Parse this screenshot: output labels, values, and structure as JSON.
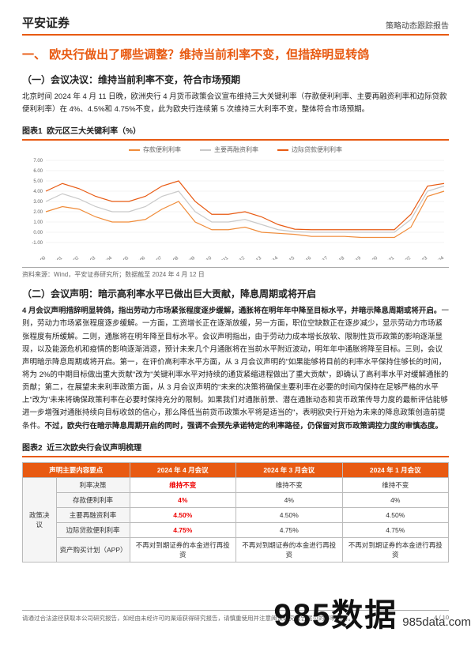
{
  "header": {
    "brand": "平安证券",
    "report_type": "策略动态跟踪报告"
  },
  "h1": "一、 欧央行做出了哪些调整？维持当前利率不变，但措辞明显转鸽",
  "section1": {
    "h2": "（一）会议决议：维持当前利率不变，符合市场预期",
    "p1": "北京时间 2024 年 4 月 11 日晚，欧洲央行 4 月货币政策会议宣布维持三大关键利率（存款便利利率、主要再融资利率和边际贷款便利利率）在 4%、4.5%和 4.75%不变，此为欧央行连续第 5 次维持三大利率不变，整体符合市场预期。"
  },
  "chart1": {
    "label": "图表1",
    "title": "欧元区三大关键利率（%）",
    "legend": [
      {
        "name": "存款便利利率",
        "color": "#f08c3a"
      },
      {
        "name": "主要再融资利率",
        "color": "#c9c9c9"
      },
      {
        "name": "边际贷款便利利率",
        "color": "#e85a12"
      }
    ],
    "ylim": [
      -1,
      7
    ],
    "ytick_step": 1,
    "grid_color": "#e8e8e8",
    "background_color": "#ffffff",
    "years": [
      "2000",
      "2001",
      "2002",
      "2003",
      "2004",
      "2005",
      "2006",
      "2007",
      "2008",
      "2009",
      "2010",
      "2011",
      "2012",
      "2013",
      "2014",
      "2015",
      "2016",
      "2017",
      "2018",
      "2019",
      "2020",
      "2021",
      "2022",
      "2023",
      "2024"
    ],
    "series": {
      "deposit": [
        2.0,
        2.5,
        2.25,
        1.5,
        1.0,
        1.0,
        1.25,
        2.25,
        3.0,
        1.0,
        0.25,
        0.25,
        0.5,
        0.0,
        -0.1,
        -0.2,
        -0.4,
        -0.4,
        -0.4,
        -0.5,
        -0.5,
        -0.5,
        0.5,
        3.5,
        4.0
      ],
      "mro": [
        3.0,
        3.75,
        3.25,
        2.5,
        2.0,
        2.0,
        2.5,
        3.5,
        4.0,
        2.0,
        1.0,
        1.0,
        1.25,
        0.75,
        0.25,
        0.05,
        0.0,
        0.0,
        0.0,
        0.0,
        0.0,
        0.0,
        1.25,
        4.0,
        4.5
      ],
      "marginal": [
        4.0,
        4.75,
        4.25,
        3.5,
        3.0,
        3.0,
        3.5,
        4.5,
        5.0,
        3.0,
        1.75,
        1.75,
        2.0,
        1.5,
        0.75,
        0.3,
        0.25,
        0.25,
        0.25,
        0.25,
        0.25,
        0.25,
        1.75,
        4.5,
        4.75
      ]
    },
    "line_width": 1.2,
    "source": "资料来源：Wind，平安证券研究所；数据截至 2024 年 4 月 12 日"
  },
  "section2": {
    "h2": "（二）会议声明：暗示高利率水平已做出巨大贡献，降息周期或将开启",
    "p_bold": "4 月会议声明措辞明显转鸽，指出劳动力市场紧张程度逐步缓解，通胀将在明年年中降至目标水平，并暗示降息周期或将开启。",
    "p_rest": "一则，劳动力市场紧张程度逐步缓解。一方面，工资增长正在逐渐放缓，另一方面，职位空缺数正在逐步减少，显示劳动力市场紧张程度有所缓解。二则，通胀将在明年降至目标水平。会议声明指出，由于劳动力成本增长放软、限制性货币政策的影响逐渐显现，以及能源危机和疫情的影响逐渐消退，预计未来几个月通胀将在当前水平附近波动，明年年中通胀将降至目标。三则，会议声明暗示降息周期或将开启。第一，在评价高利率水平方面，从 3 月会议声明的\"如果能够将目前的利率水平保持住够长的时间，将为 2%的中期目标做出重大贡献\"改为\"关键利率水平对持续的通货紧缩进程做出了重大贡献\"，即确认了高利率水平对缓解通胀的贡献；第二，在展望未来利率政策方面，从 3 月会议声明的\"未来的决策将确保主要利率在必要的时间内保持在足够严格的水平上\"改为\"未来将确保政策利率在必要时保持充分的限制。如果我们对通胀前景、潜在通胀动态和货币政策传导力度的最新评估能够进一步增强对通胀持续向目标收敛的信心，那么降低当前货币政策水平将是适当的\"，表明欧央行开始为未来的降息政策创造前提条件。",
    "p_bold2": "不过，欧央行在暗示降息周期开启的同时，强调不会预先承诺特定的利率路径，仍保留对货币政策调控力度的审慎态度。"
  },
  "table2": {
    "label": "图表2",
    "title": "近三次欧央行会议声明梳理",
    "headers": [
      "声明主要内容要点",
      "2024 年 4 月会议",
      "2024 年 3 月会议",
      "2024 年 1 月会议"
    ],
    "group_label": "政策决议",
    "rows": [
      {
        "k": "利率决策",
        "v4": "维持不变",
        "v4_style": "red-bold",
        "v3": "维持不变",
        "v1": "维持不变"
      },
      {
        "k": "存款便利利率",
        "v4": "4%",
        "v4_style": "red-bold",
        "v3": "4%",
        "v1": "4%"
      },
      {
        "k": "主要再融资利率",
        "v4": "4.50%",
        "v4_style": "red-bold",
        "v3": "4.50%",
        "v1": "4.50%"
      },
      {
        "k": "边际贷款便利利率",
        "v4": "4.75%",
        "v4_style": "red-bold",
        "v3": "4.75%",
        "v1": "4.75%"
      },
      {
        "k": "资产购买计划（APP）",
        "v4": "不再对到期证券的本金进行再投资",
        "v3": "不再对到期证券的本金进行再投资",
        "v1": "不再对到期证券的本金进行再投资"
      }
    ]
  },
  "footer": {
    "disclaimer": "请通过合法途径获取本公司研究报告，如经由未经许可的渠道获得研究报告，请慎重使用并注意阅读研究报告尾页的声明内容。",
    "page": "4 / 10"
  },
  "watermark": {
    "big": "985数据",
    "small": "985data.com"
  }
}
